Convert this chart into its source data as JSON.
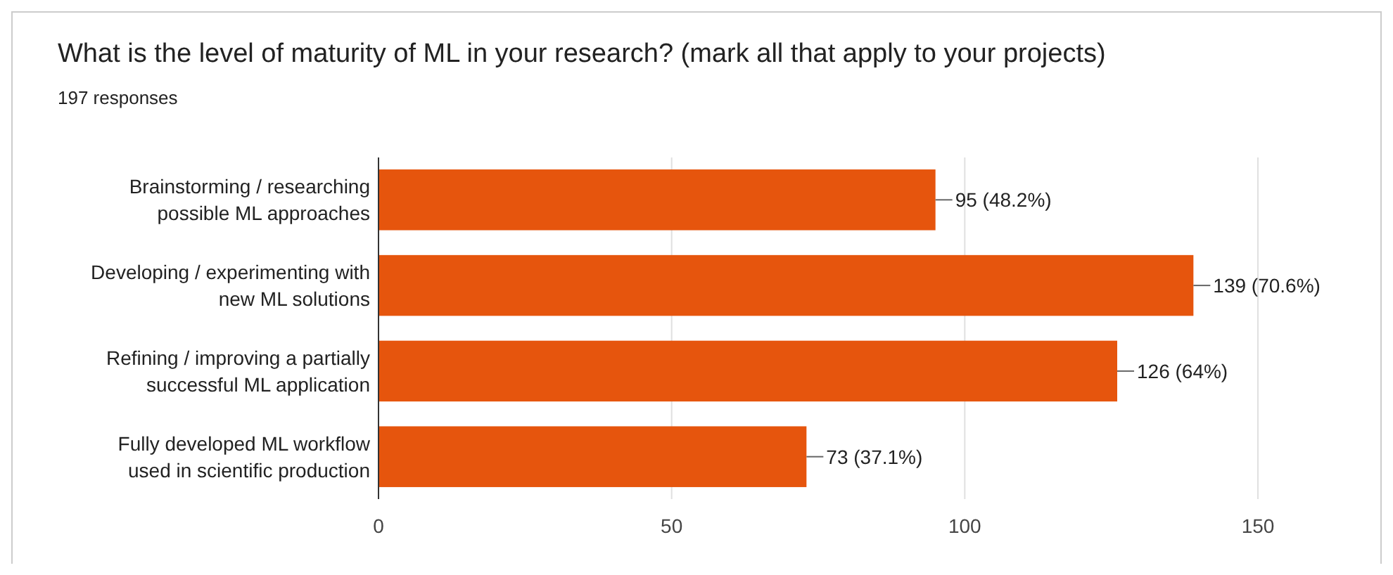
{
  "chart_data": {
    "type": "bar",
    "orientation": "horizontal",
    "title": "What is the level of maturity of ML in your research? (mark all that apply to your projects)",
    "subtitle": "197 responses",
    "categories": [
      "Brainstorming / researching possible ML approaches",
      "Developing / experimenting with new ML solutions",
      "Refining / improving a partially successful ML application",
      "Fully developed ML workflow used in scientific production"
    ],
    "values": [
      95,
      139,
      126,
      73
    ],
    "value_labels": [
      "95 (48.2%)",
      "139 (70.6%)",
      "126 (64%)",
      "73 (37.1%)"
    ],
    "color": "#e6550d",
    "xlim": [
      0,
      150
    ],
    "xticks": [
      0,
      50,
      100,
      150
    ],
    "grid": "x"
  }
}
